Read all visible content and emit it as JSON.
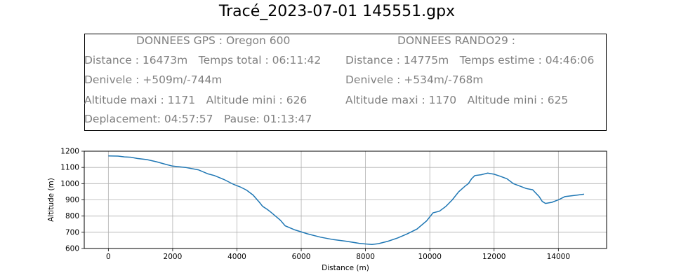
{
  "title": "Tracé_2023-07-01 145551.gpx",
  "info": {
    "gps": {
      "header": "DONNEES GPS :  Oregon 600",
      "lines": [
        "Distance : 16473m Temps total : 06:11:42",
        "Denivele : +509m/-744m",
        "Altitude maxi : 1171 Altitude mini : 626",
        "Deplacement: 04:57:57 Pause: 01:13:47"
      ]
    },
    "rando": {
      "header": "DONNEES RANDO29  :",
      "lines": [
        "Distance : 14775m Temps estime : 04:46:06",
        "Denivele : +534m/-768m",
        "Altitude maxi : 1170 Altitude mini : 625"
      ]
    }
  },
  "chart_data": {
    "type": "line",
    "xlabel": "Distance (m)",
    "ylabel": "Altitude (m)",
    "xlim": [
      -750,
      15500
    ],
    "ylim": [
      600,
      1200
    ],
    "xticks": [
      0,
      2000,
      4000,
      6000,
      8000,
      10000,
      12000,
      14000
    ],
    "yticks": [
      600,
      700,
      800,
      900,
      1000,
      1100,
      1200
    ],
    "grid": true,
    "color": "#1f77b4",
    "series": [
      {
        "x": [
          0,
          300,
          500,
          700,
          900,
          1200,
          1500,
          1800,
          2000,
          2400,
          2800,
          3100,
          3300,
          3600,
          3900,
          4100,
          4300,
          4500,
          4700,
          4800,
          4950,
          5050,
          5200,
          5350,
          5500,
          5800,
          6200,
          6600,
          7000,
          7400,
          7800,
          8000,
          8200,
          8400,
          8700,
          9000,
          9300,
          9600,
          9900,
          10100,
          10300,
          10500,
          10700,
          10900,
          11100,
          11200,
          11300,
          11400,
          11600,
          11800,
          12000,
          12200,
          12400,
          12600,
          12800,
          13000,
          13200,
          13400,
          13500,
          13600,
          13800,
          14000,
          14200,
          14400,
          14600,
          14800
        ],
        "y": [
          1171,
          1170,
          1165,
          1163,
          1155,
          1148,
          1135,
          1118,
          1108,
          1100,
          1085,
          1060,
          1050,
          1025,
          995,
          980,
          960,
          930,
          885,
          860,
          840,
          825,
          800,
          775,
          740,
          715,
          690,
          670,
          655,
          645,
          632,
          628,
          625,
          630,
          645,
          665,
          690,
          720,
          770,
          820,
          830,
          860,
          900,
          950,
          985,
          1000,
          1030,
          1050,
          1055,
          1065,
          1058,
          1045,
          1030,
          1000,
          985,
          970,
          962,
          920,
          890,
          878,
          885,
          900,
          920,
          925,
          930,
          935
        ]
      }
    ]
  }
}
